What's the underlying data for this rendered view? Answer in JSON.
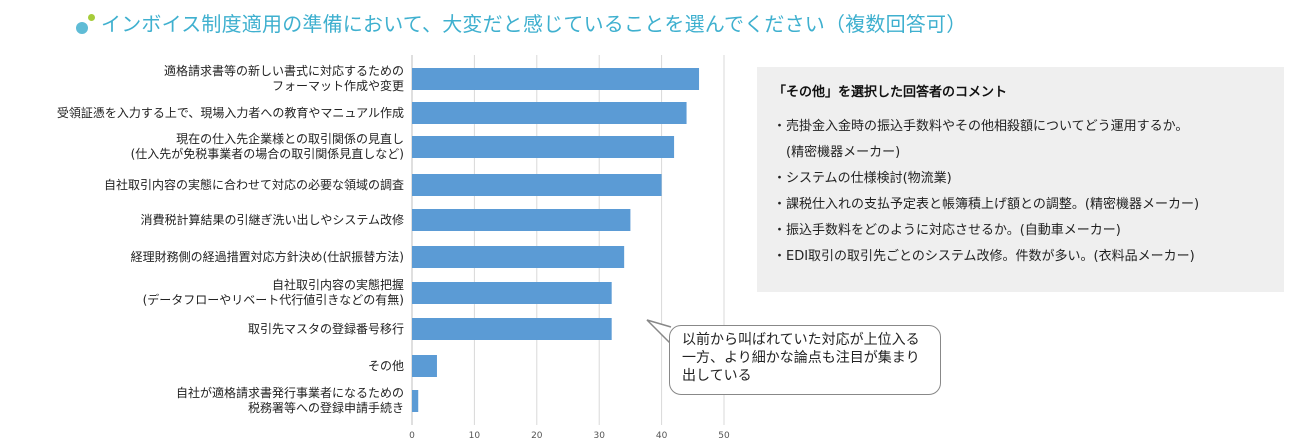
{
  "title": "インボイス制度適用の準備において、大変だと感じていることを選んでください（複数回答可）",
  "chart_data": {
    "type": "bar",
    "orientation": "horizontal",
    "categories": [
      "適格請求書等の新しい書式に対応するための\nフォーマット作成や変更",
      "受領証憑を入力する上で、現場入力者への教育やマニュアル作成",
      "現在の仕入先企業様との取引関係の見直し\n(仕入先が免税事業者の場合の取引関係見直しなど)",
      "自社取引内容の実態に合わせて対応の必要な領域の調査",
      "消費税計算結果の引継ぎ洗い出しやシステム改修",
      "経理財務側の経過措置対応方針決め(仕訳振替方法)",
      "自社取引内容の実態把握\n(データフローやリベート代行値引きなどの有無)",
      "取引先マスタの登録番号移行",
      "その他",
      "自社が適格請求書発行事業者になるための\n税務署等への登録申請手続き"
    ],
    "values": [
      46,
      44,
      42,
      40,
      35,
      34,
      32,
      32,
      4,
      1
    ],
    "xlim": [
      0,
      50
    ],
    "xticks": [
      0,
      10,
      20,
      30,
      40,
      50
    ],
    "bar_color": "#5b9bd5",
    "grid": true
  },
  "comments": {
    "title": "「その他」を選択した回答者のコメント",
    "items": [
      "・売掛金入金時の振込手数料やその他相殺額についてどう運用するか。\n　(精密機器メーカー)",
      "・システムの仕様検討(物流業)",
      "・課税仕入れの支払予定表と帳簿積上げ額との調整。(精密機器メーカー)",
      "・振込手数料をどのように対応させるか。(自動車メーカー)",
      "・EDI取引の取引先ごとのシステム改修。件数が多い。(衣料品メーカー)"
    ]
  },
  "callout": "以前から叫ばれていた対応が上位入る一方、より細かな論点も注目が集まり出している"
}
